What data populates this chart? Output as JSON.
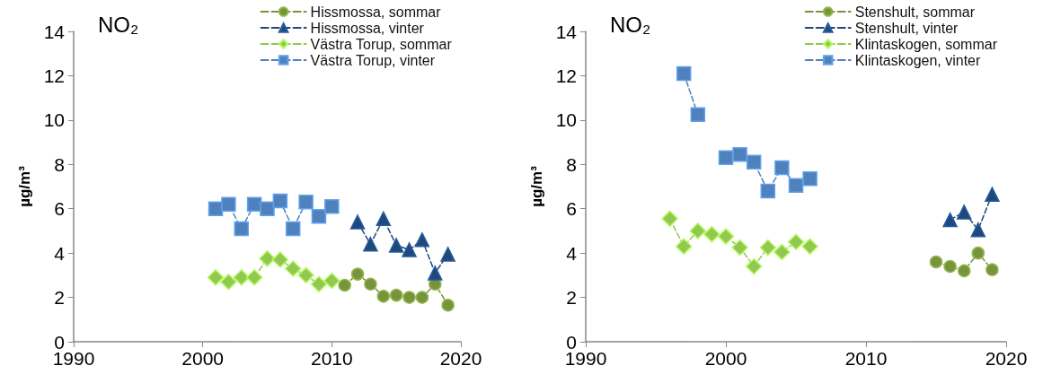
{
  "chart_data": [
    {
      "type": "line",
      "title": "NO₂",
      "ylabel": "µg/m³",
      "xlim": [
        1990,
        2020
      ],
      "xticks": [
        1990,
        2000,
        2010,
        2020
      ],
      "ylim": [
        0,
        14
      ],
      "yticks": [
        0,
        2,
        4,
        6,
        8,
        10,
        12,
        14
      ],
      "grid": false,
      "legend": "top right",
      "line_style": "dashed",
      "series": [
        {
          "name": "Hissmossa, sommar",
          "color": "#77933c",
          "marker": "circle",
          "x": [
            2011,
            2012,
            2013,
            2014,
            2015,
            2016,
            2017,
            2018,
            2019
          ],
          "values": [
            2.55,
            3.05,
            2.6,
            2.05,
            2.1,
            2.0,
            2.0,
            2.6,
            1.65
          ]
        },
        {
          "name": "Hissmossa, vinter",
          "color": "#1f497d",
          "marker": "triangle",
          "x": [
            2012,
            2013,
            2014,
            2015,
            2016,
            2017,
            2018,
            2019
          ],
          "values": [
            5.4,
            4.4,
            5.55,
            4.35,
            4.15,
            4.6,
            3.1,
            3.95
          ]
        },
        {
          "name": "Västra Torup, sommar",
          "color": "#92c84f",
          "marker": "diamond",
          "x": [
            2001,
            2002,
            2003,
            2004,
            2005,
            2006,
            2007,
            2008,
            2009,
            2010
          ],
          "values": [
            2.9,
            2.7,
            2.9,
            2.9,
            3.75,
            3.7,
            3.3,
            3.0,
            2.6,
            2.75
          ]
        },
        {
          "name": "Västra Torup, vinter",
          "color": "#4f81bd",
          "marker": "square",
          "x": [
            2001,
            2002,
            2003,
            2004,
            2005,
            2006,
            2007,
            2008,
            2009,
            2010
          ],
          "values": [
            6.0,
            6.2,
            5.1,
            6.2,
            6.0,
            6.35,
            5.1,
            6.3,
            5.65,
            6.1
          ]
        }
      ]
    },
    {
      "type": "line",
      "title": "NO₂",
      "ylabel": "µg/m³",
      "xlim": [
        1990,
        2020
      ],
      "xticks": [
        1990,
        2000,
        2010,
        2020
      ],
      "ylim": [
        0,
        14
      ],
      "yticks": [
        0,
        2,
        4,
        6,
        8,
        10,
        12,
        14
      ],
      "grid": false,
      "legend": "top right",
      "line_style": "dashed",
      "series": [
        {
          "name": "Stenshult, sommar",
          "color": "#77933c",
          "marker": "circle",
          "x": [
            2015,
            2016,
            2017,
            2018,
            2019
          ],
          "values": [
            3.6,
            3.4,
            3.2,
            4.0,
            3.25
          ]
        },
        {
          "name": "Stenshult, vinter",
          "color": "#1f497d",
          "marker": "triangle",
          "x": [
            2016,
            2017,
            2018,
            2019
          ],
          "values": [
            5.5,
            5.85,
            5.05,
            6.65
          ]
        },
        {
          "name": "Klintaskogen, sommar",
          "color": "#92c84f",
          "marker": "diamond",
          "x": [
            1996,
            1997,
            1998,
            1999,
            2000,
            2001,
            2002,
            2003,
            2004,
            2005,
            2006
          ],
          "values": [
            5.55,
            4.3,
            5.0,
            4.85,
            4.75,
            4.25,
            3.4,
            4.25,
            4.05,
            4.5,
            4.3
          ]
        },
        {
          "name": "Klintaskogen, vinter",
          "color": "#4f81bd",
          "marker": "square",
          "x": [
            1997,
            1998,
            1999,
            2000,
            2001,
            2002,
            2003,
            2004,
            2005,
            2006
          ],
          "values": [
            12.1,
            10.25,
            null,
            8.3,
            8.45,
            8.1,
            6.8,
            7.85,
            7.05,
            7.35
          ]
        }
      ]
    }
  ]
}
